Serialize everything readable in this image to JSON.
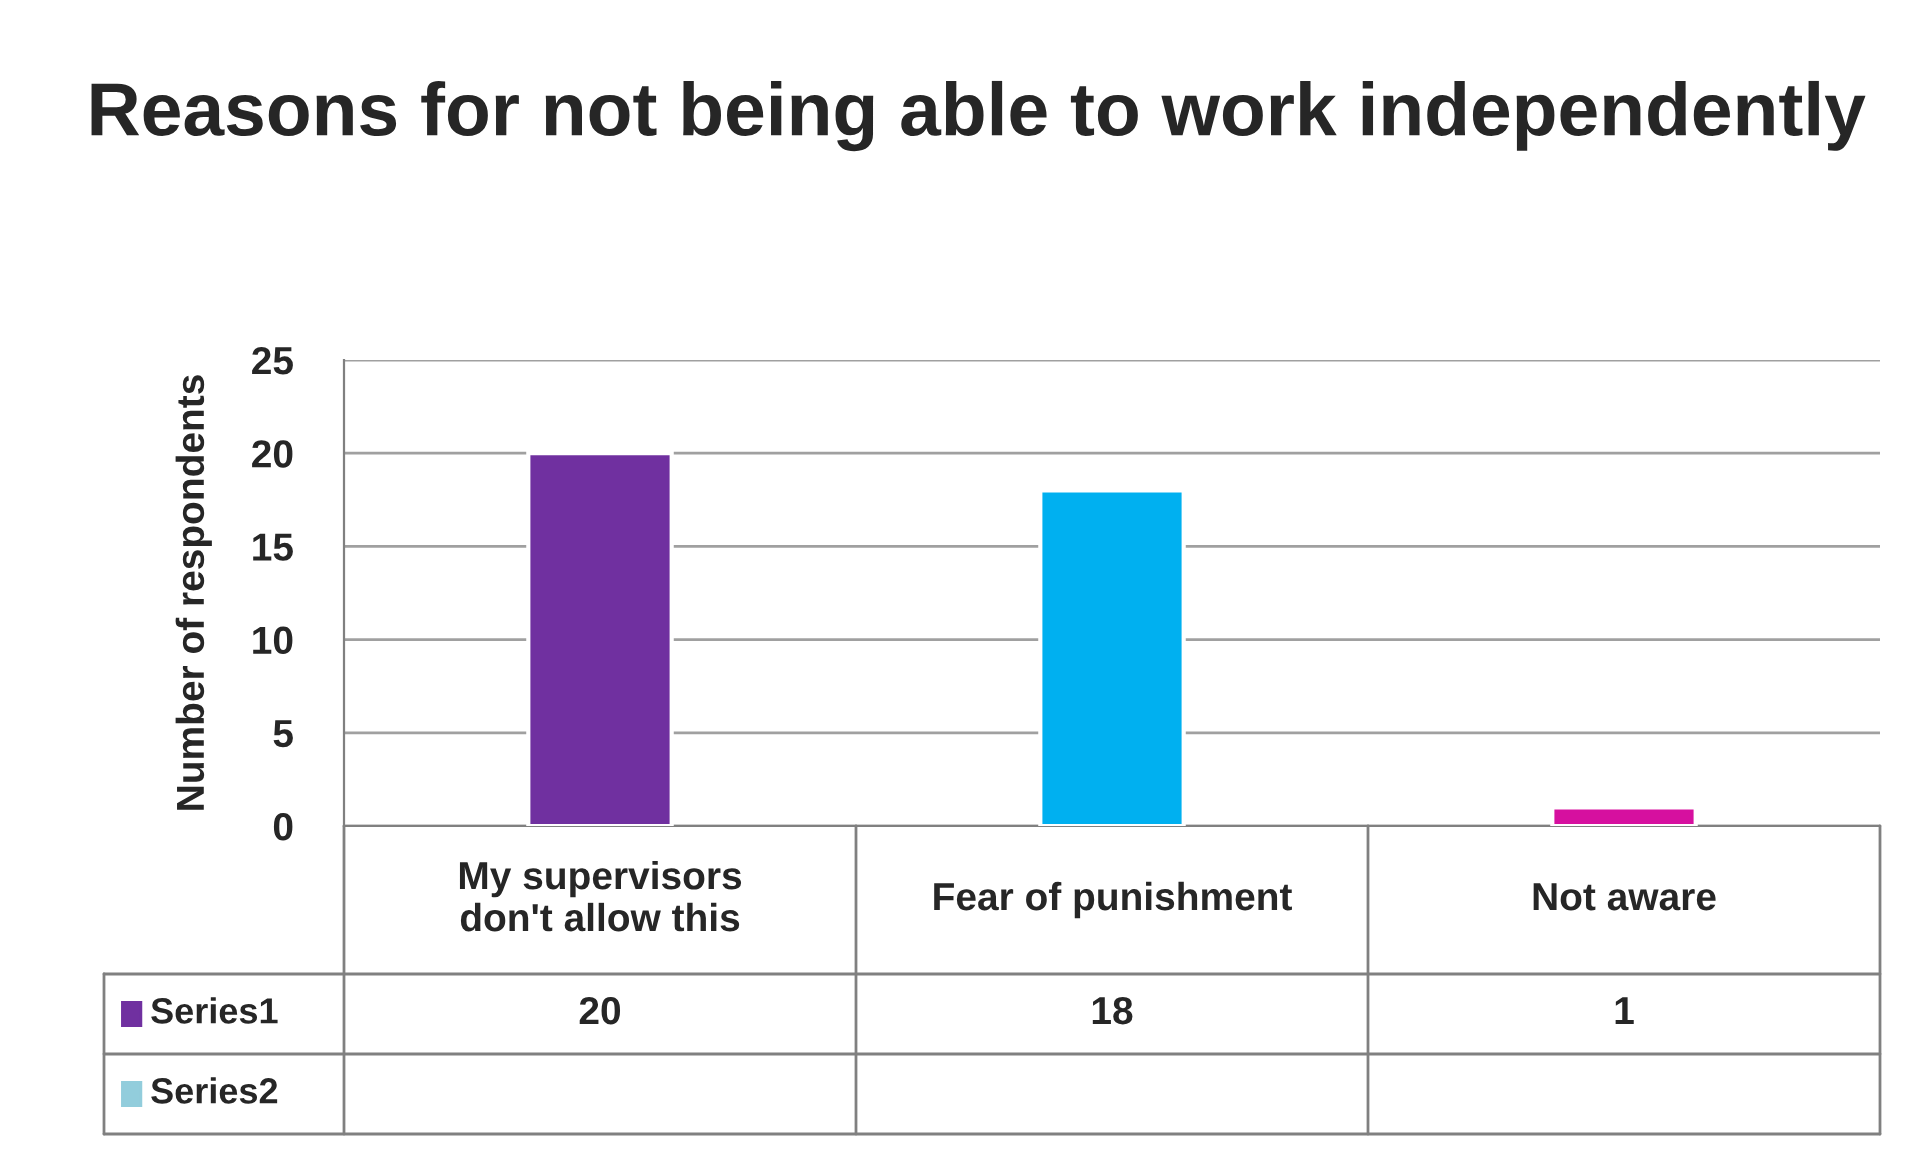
{
  "chart_data": {
    "type": "bar",
    "title": "Reasons for not being able to work independently",
    "ylabel": "Number of respondents",
    "categories": [
      "My supervisors\ndon't allow this",
      "Fear of punishment",
      "Not aware"
    ],
    "series": [
      {
        "name": "Series1",
        "color": "#7030a0",
        "colors": [
          "#7030a0",
          "#00b0f0",
          "#d6109f"
        ],
        "values": [
          20,
          18,
          1
        ]
      },
      {
        "name": "Series2",
        "color": "#92cddc",
        "values": [
          null,
          null,
          null
        ]
      }
    ],
    "ylim": [
      0,
      25
    ],
    "yticks": [
      0,
      5,
      10,
      15,
      20,
      25
    ],
    "grid": "y",
    "data_labels": true,
    "legend": "bottom"
  }
}
